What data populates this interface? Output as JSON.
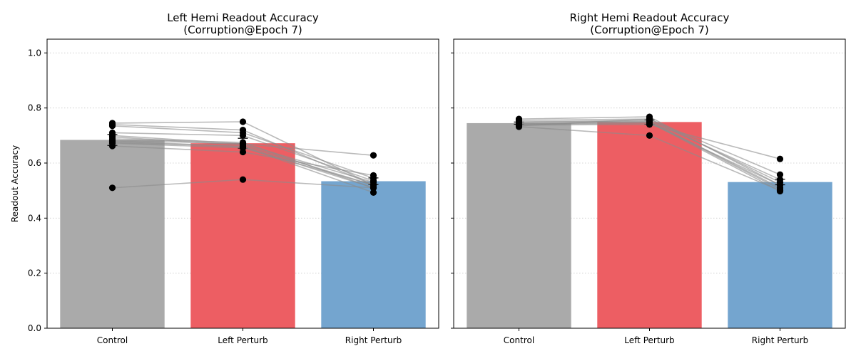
{
  "chart_data": [
    {
      "type": "bar",
      "title": "Left Hemi Readout Accuracy",
      "subtitle": "(Corruption@Epoch 7)",
      "xlabel": "",
      "ylabel": "Readout Accuracy",
      "ylim": [
        0,
        1.05
      ],
      "yticks": [
        "0.0",
        "0.2",
        "0.4",
        "0.6",
        "0.8",
        "1.0"
      ],
      "grid": true,
      "categories": [
        "Control",
        "Left Perturb",
        "Right Perturb"
      ],
      "values": [
        0.684,
        0.672,
        0.534
      ],
      "bar_colors": [
        "#aaaaaa",
        "#ed5e63",
        "#74a5cf"
      ],
      "error": [
        0.02,
        0.018,
        0.012
      ],
      "subjects": [
        [
          0.745,
          0.75,
          0.52
        ],
        [
          0.74,
          0.72,
          0.52
        ],
        [
          0.735,
          0.71,
          0.545
        ],
        [
          0.71,
          0.7,
          0.535
        ],
        [
          0.7,
          0.67,
          0.628
        ],
        [
          0.695,
          0.665,
          0.52
        ],
        [
          0.688,
          0.675,
          0.51
        ],
        [
          0.683,
          0.67,
          0.53
        ],
        [
          0.68,
          0.66,
          0.51
        ],
        [
          0.675,
          0.66,
          0.493
        ],
        [
          0.672,
          0.655,
          0.52
        ],
        [
          0.662,
          0.64,
          0.555
        ],
        [
          0.51,
          0.54,
          0.51
        ]
      ]
    },
    {
      "type": "bar",
      "title": "Right Hemi Readout Accuracy",
      "subtitle": "(Corruption@Epoch 7)",
      "xlabel": "",
      "ylabel": "",
      "ylim": [
        0,
        1.05
      ],
      "yticks": [
        "0.0",
        "0.2",
        "0.4",
        "0.6",
        "0.8",
        "1.0"
      ],
      "grid": true,
      "categories": [
        "Control",
        "Left Perturb",
        "Right Perturb"
      ],
      "values": [
        0.745,
        0.749,
        0.531
      ],
      "bar_colors": [
        "#aaaaaa",
        "#ed5e63",
        "#74a5cf"
      ],
      "error": [
        0.004,
        0.008,
        0.01
      ],
      "subjects": [
        [
          0.76,
          0.768,
          0.52
        ],
        [
          0.755,
          0.76,
          0.53
        ],
        [
          0.75,
          0.755,
          0.54
        ],
        [
          0.748,
          0.752,
          0.51
        ],
        [
          0.745,
          0.75,
          0.505
        ],
        [
          0.742,
          0.748,
          0.498
        ],
        [
          0.74,
          0.745,
          0.52
        ],
        [
          0.738,
          0.74,
          0.615
        ],
        [
          0.735,
          0.76,
          0.558
        ],
        [
          0.732,
          0.7,
          0.5
        ]
      ]
    }
  ]
}
